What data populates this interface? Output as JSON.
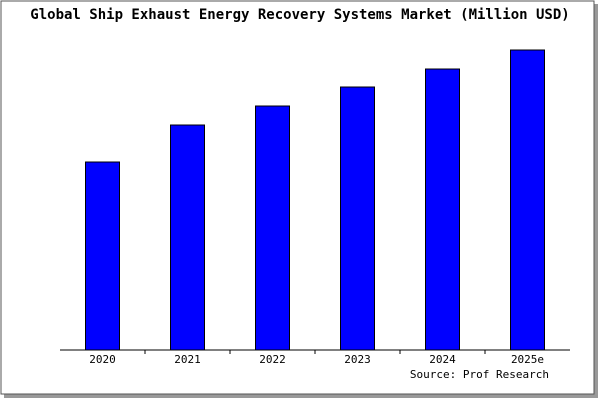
{
  "chart_data": {
    "type": "bar",
    "title": "Global Ship Exhaust Energy Recovery Systems Market (Million USD)",
    "categories": [
      "2020",
      "2021",
      "2022",
      "2023",
      "2024",
      "2025e"
    ],
    "values": [
      188,
      225,
      244,
      263,
      281,
      300
    ],
    "color": "#0000ff",
    "ylim": [
      0,
      305
    ],
    "source": "Source: Prof Research"
  }
}
